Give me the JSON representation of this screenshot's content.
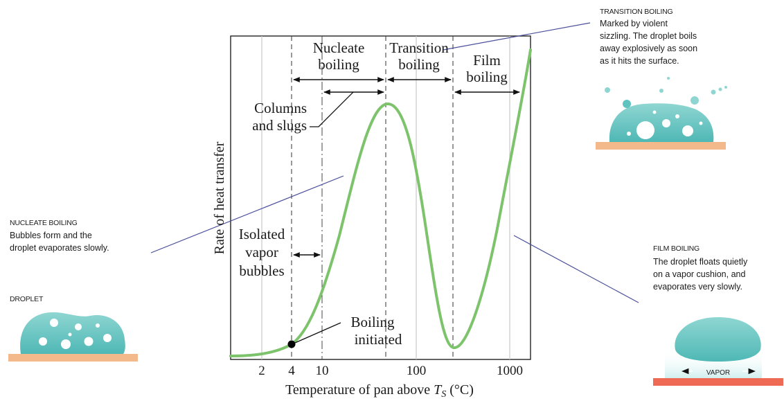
{
  "chart": {
    "ylabel": "Rate of heat transfer",
    "xlabel": "Temperature of pan above",
    "xlabel_symbol": "T",
    "xlabel_subscript": "S",
    "xlabel_unit": "(°C)",
    "x_ticks": [
      "2",
      "4",
      "10",
      "100",
      "1000"
    ],
    "regions": {
      "nucleate": [
        "Nucleate",
        "boiling"
      ],
      "transition": [
        "Transition",
        "boiling"
      ],
      "film": [
        "Film",
        "boiling"
      ]
    },
    "annotations": {
      "columns": [
        "Columns",
        "and slugs"
      ],
      "isolated": [
        "Isolated",
        "vapor",
        "bubbles"
      ],
      "boiling_initiated": [
        "Boiling",
        "initiated"
      ]
    }
  },
  "callouts": {
    "transition": {
      "title": "TRANSITION BOILING",
      "lines": [
        "Marked by violent",
        "sizzling. The droplet boils",
        "away explosively as soon",
        "as it hits the surface."
      ]
    },
    "nucleate": {
      "title": "NUCLEATE BOILING",
      "lines": [
        "Bubbles form and the",
        "droplet evaporates slowly."
      ]
    },
    "film": {
      "title": "FILM BOILING",
      "lines": [
        "The droplet floats quietly",
        "on a vapor cushion, and",
        "evaporates very slowly."
      ]
    },
    "droplet": {
      "title": "DROPLET"
    },
    "vapor": {
      "label": "VAPOR"
    }
  },
  "colors": {
    "curve": "#7dc36b",
    "droplet": "#5fc3c0",
    "droplet_light": "#a8e0dc",
    "surface": "#f4b98b",
    "hot_surface": "#ef6a55",
    "callout_line": "#4a4f9a"
  }
}
